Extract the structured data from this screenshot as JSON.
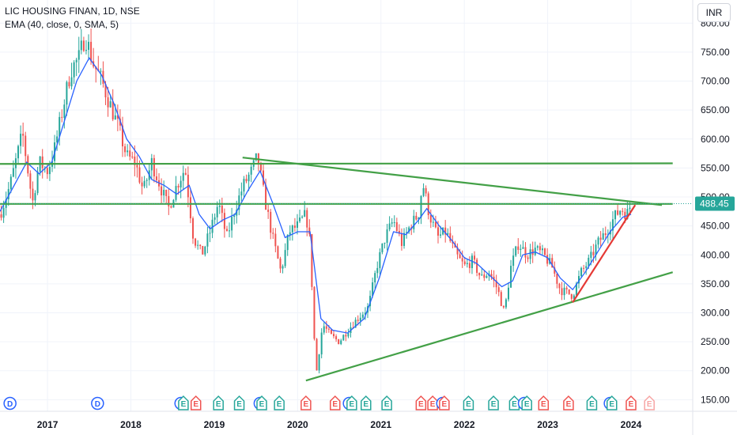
{
  "header": {
    "symbol": "LIC HOUSING FINAN, 1D, NSE",
    "indicator": "EMA (40, close, 0, SMA, 5)",
    "currency": "INR"
  },
  "colors": {
    "up": "#26a69a",
    "down": "#ef5350",
    "ema": "#2962ff",
    "trendline": "#43a047",
    "support": "#e53935",
    "price_label_bg": "#26a69a"
  },
  "chart_data": {
    "type": "candlestick",
    "ylim": [
      130,
      840
    ],
    "y_ticks": [
      150,
      200,
      250,
      300,
      350,
      400,
      450,
      500,
      550,
      600,
      650,
      700,
      750,
      800
    ],
    "y_tick_labels": [
      "150.00",
      "200.00",
      "250.00",
      "300.00",
      "350.00",
      "400.00",
      "450.00",
      "500.00",
      "550.00",
      "600.00",
      "650.00",
      "700.00",
      "750.00",
      "800.00"
    ],
    "x_ticks": [
      2017,
      2018,
      2019,
      2020,
      2021,
      2022,
      2023,
      2024
    ],
    "x_tick_labels": [
      "2017",
      "2018",
      "2019",
      "2020",
      "2021",
      "2022",
      "2023",
      "2024"
    ],
    "xlim": [
      2016.43,
      2024.74
    ],
    "last_price": 488.45,
    "last_price_label": "488.45",
    "price_path": [
      [
        2016.43,
        470
      ],
      [
        2016.55,
        520
      ],
      [
        2016.7,
        610
      ],
      [
        2016.82,
        490
      ],
      [
        2016.9,
        560
      ],
      [
        2017.0,
        545
      ],
      [
        2017.08,
        580
      ],
      [
        2017.18,
        650
      ],
      [
        2017.28,
        720
      ],
      [
        2017.38,
        740
      ],
      [
        2017.45,
        780
      ],
      [
        2017.55,
        730
      ],
      [
        2017.65,
        700
      ],
      [
        2017.75,
        660
      ],
      [
        2017.85,
        620
      ],
      [
        2017.95,
        570
      ],
      [
        2018.05,
        560
      ],
      [
        2018.15,
        510
      ],
      [
        2018.25,
        560
      ],
      [
        2018.35,
        520
      ],
      [
        2018.45,
        480
      ],
      [
        2018.55,
        520
      ],
      [
        2018.65,
        550
      ],
      [
        2018.75,
        430
      ],
      [
        2018.85,
        400
      ],
      [
        2018.95,
        440
      ],
      [
        2019.05,
        490
      ],
      [
        2019.15,
        430
      ],
      [
        2019.25,
        480
      ],
      [
        2019.35,
        520
      ],
      [
        2019.45,
        545
      ],
      [
        2019.52,
        570
      ],
      [
        2019.6,
        500
      ],
      [
        2019.7,
        430
      ],
      [
        2019.8,
        370
      ],
      [
        2019.9,
        440
      ],
      [
        2020.0,
        450
      ],
      [
        2020.1,
        470
      ],
      [
        2020.15,
        420
      ],
      [
        2020.22,
        190
      ],
      [
        2020.3,
        280
      ],
      [
        2020.4,
        260
      ],
      [
        2020.5,
        250
      ],
      [
        2020.6,
        270
      ],
      [
        2020.72,
        290
      ],
      [
        2020.85,
        310
      ],
      [
        2020.95,
        380
      ],
      [
        2021.05,
        430
      ],
      [
        2021.15,
        460
      ],
      [
        2021.25,
        420
      ],
      [
        2021.35,
        450
      ],
      [
        2021.45,
        470
      ],
      [
        2021.5,
        525
      ],
      [
        2021.58,
        470
      ],
      [
        2021.68,
        430
      ],
      [
        2021.78,
        440
      ],
      [
        2021.9,
        400
      ],
      [
        2022.0,
        380
      ],
      [
        2022.1,
        390
      ],
      [
        2022.2,
        360
      ],
      [
        2022.3,
        370
      ],
      [
        2022.4,
        340
      ],
      [
        2022.48,
        300
      ],
      [
        2022.56,
        380
      ],
      [
        2022.65,
        420
      ],
      [
        2022.75,
        400
      ],
      [
        2022.85,
        410
      ],
      [
        2022.95,
        400
      ],
      [
        2023.05,
        380
      ],
      [
        2023.15,
        340
      ],
      [
        2023.3,
        330
      ],
      [
        2023.4,
        370
      ],
      [
        2023.5,
        390
      ],
      [
        2023.6,
        420
      ],
      [
        2023.7,
        440
      ],
      [
        2023.8,
        465
      ],
      [
        2023.88,
        480
      ],
      [
        2023.95,
        470
      ],
      [
        2024.0,
        488
      ]
    ],
    "ema_path": [
      [
        2016.43,
        475
      ],
      [
        2016.6,
        520
      ],
      [
        2016.75,
        560
      ],
      [
        2016.9,
        540
      ],
      [
        2017.05,
        560
      ],
      [
        2017.2,
        630
      ],
      [
        2017.35,
        700
      ],
      [
        2017.5,
        740
      ],
      [
        2017.65,
        710
      ],
      [
        2017.8,
        660
      ],
      [
        2017.95,
        600
      ],
      [
        2018.1,
        570
      ],
      [
        2018.25,
        530
      ],
      [
        2018.4,
        520
      ],
      [
        2018.55,
        505
      ],
      [
        2018.7,
        520
      ],
      [
        2018.82,
        470
      ],
      [
        2018.95,
        445
      ],
      [
        2019.1,
        460
      ],
      [
        2019.25,
        470
      ],
      [
        2019.4,
        510
      ],
      [
        2019.55,
        545
      ],
      [
        2019.7,
        490
      ],
      [
        2019.85,
        430
      ],
      [
        2020.0,
        440
      ],
      [
        2020.15,
        440
      ],
      [
        2020.28,
        290
      ],
      [
        2020.42,
        270
      ],
      [
        2020.6,
        265
      ],
      [
        2020.8,
        290
      ],
      [
        2020.98,
        360
      ],
      [
        2021.15,
        440
      ],
      [
        2021.3,
        435
      ],
      [
        2021.45,
        460
      ],
      [
        2021.55,
        480
      ],
      [
        2021.7,
        450
      ],
      [
        2021.85,
        425
      ],
      [
        2022.0,
        395
      ],
      [
        2022.15,
        385
      ],
      [
        2022.3,
        365
      ],
      [
        2022.45,
        345
      ],
      [
        2022.58,
        355
      ],
      [
        2022.7,
        400
      ],
      [
        2022.85,
        405
      ],
      [
        2023.0,
        395
      ],
      [
        2023.15,
        360
      ],
      [
        2023.3,
        340
      ],
      [
        2023.45,
        370
      ],
      [
        2023.6,
        405
      ],
      [
        2023.75,
        440
      ],
      [
        2023.9,
        465
      ],
      [
        2024.0,
        470
      ]
    ],
    "lines": [
      {
        "name": "resistance-horizontal",
        "kind": "trendline",
        "x1": 2016.43,
        "y1": 557,
        "x2": 2024.5,
        "y2": 558
      },
      {
        "name": "pivot-horizontal",
        "kind": "trendline",
        "x1": 2016.43,
        "y1": 488,
        "x2": 2024.5,
        "y2": 488
      },
      {
        "name": "descending-trendline",
        "kind": "trendline",
        "x1": 2019.34,
        "y1": 568,
        "x2": 2024.37,
        "y2": 486
      },
      {
        "name": "ascending-trendline",
        "kind": "trendline",
        "x1": 2020.1,
        "y1": 183,
        "x2": 2024.5,
        "y2": 370
      },
      {
        "name": "steep-support",
        "kind": "support",
        "x1": 2023.3,
        "y1": 318,
        "x2": 2024.05,
        "y2": 486
      }
    ],
    "events": [
      {
        "label": "D",
        "x": 2016.55,
        "kind": "dividend"
      },
      {
        "label": "D",
        "x": 2017.6,
        "kind": "dividend"
      },
      {
        "label": "D",
        "x": 2018.6,
        "kind": "dividend"
      },
      {
        "label": "E",
        "x": 2018.63,
        "kind": "earnings-up"
      },
      {
        "label": "E",
        "x": 2018.78,
        "kind": "earnings-down"
      },
      {
        "label": "E",
        "x": 2019.05,
        "kind": "earnings-up"
      },
      {
        "label": "E",
        "x": 2019.3,
        "kind": "earnings-up"
      },
      {
        "label": "D",
        "x": 2019.55,
        "kind": "dividend"
      },
      {
        "label": "E",
        "x": 2019.57,
        "kind": "earnings-up"
      },
      {
        "label": "E",
        "x": 2019.78,
        "kind": "earnings-up"
      },
      {
        "label": "E",
        "x": 2020.1,
        "kind": "earnings-down"
      },
      {
        "label": "E",
        "x": 2020.45,
        "kind": "earnings-down"
      },
      {
        "label": "D",
        "x": 2020.62,
        "kind": "dividend"
      },
      {
        "label": "E",
        "x": 2020.65,
        "kind": "earnings-up"
      },
      {
        "label": "E",
        "x": 2020.82,
        "kind": "earnings-up"
      },
      {
        "label": "E",
        "x": 2021.07,
        "kind": "earnings-up"
      },
      {
        "label": "E",
        "x": 2021.48,
        "kind": "earnings-down"
      },
      {
        "label": "E",
        "x": 2021.62,
        "kind": "earnings-down"
      },
      {
        "label": "D",
        "x": 2021.74,
        "kind": "dividend"
      },
      {
        "label": "E",
        "x": 2021.76,
        "kind": "earnings-down"
      },
      {
        "label": "E",
        "x": 2022.05,
        "kind": "earnings-up"
      },
      {
        "label": "E",
        "x": 2022.35,
        "kind": "earnings-up"
      },
      {
        "label": "E",
        "x": 2022.6,
        "kind": "earnings-up"
      },
      {
        "label": "D",
        "x": 2022.72,
        "kind": "dividend"
      },
      {
        "label": "E",
        "x": 2022.75,
        "kind": "earnings-up"
      },
      {
        "label": "E",
        "x": 2022.95,
        "kind": "earnings-down"
      },
      {
        "label": "E",
        "x": 2023.25,
        "kind": "earnings-down"
      },
      {
        "label": "E",
        "x": 2023.53,
        "kind": "earnings-up"
      },
      {
        "label": "D",
        "x": 2023.75,
        "kind": "dividend"
      },
      {
        "label": "E",
        "x": 2023.77,
        "kind": "earnings-up"
      },
      {
        "label": "E",
        "x": 2024.0,
        "kind": "earnings-down"
      },
      {
        "label": "E",
        "x": 2024.22,
        "kind": "earnings-pending"
      }
    ]
  }
}
